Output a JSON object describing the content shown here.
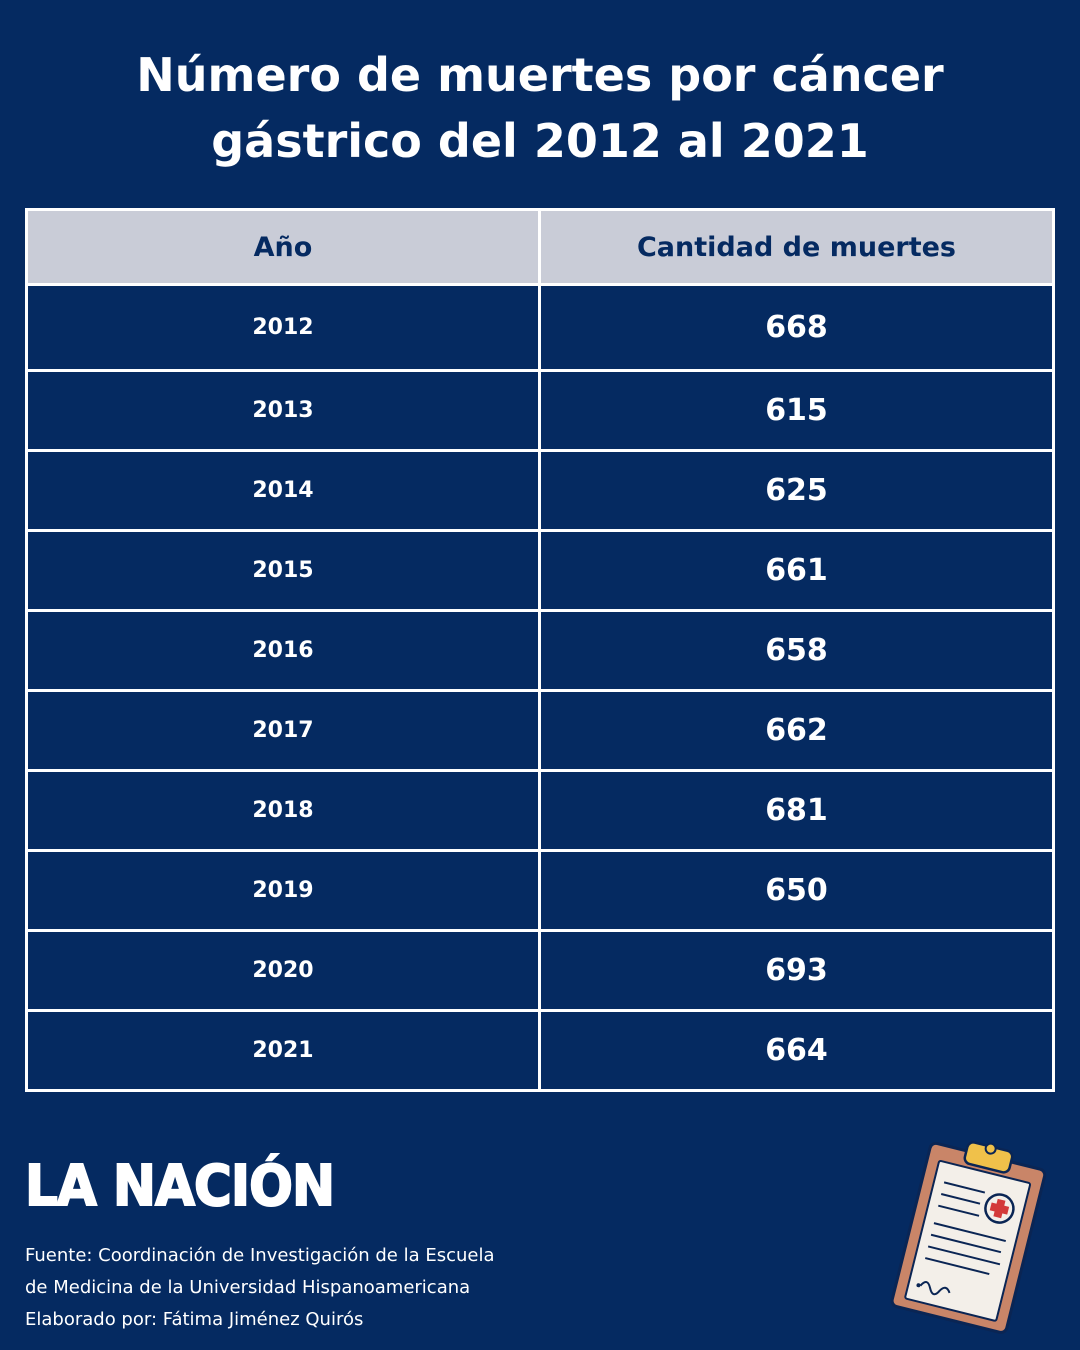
{
  "chart_data": {
    "type": "table",
    "title": "Número de muertes por cáncer gástrico del 2012 al 2021",
    "columns": [
      "Año",
      "Cantidad de muertes"
    ],
    "rows": [
      {
        "year": "2012",
        "value": "668"
      },
      {
        "year": "2013",
        "value": "615"
      },
      {
        "year": "2014",
        "value": "625"
      },
      {
        "year": "2015",
        "value": "661"
      },
      {
        "year": "2016",
        "value": "658"
      },
      {
        "year": "2017",
        "value": "662"
      },
      {
        "year": "2018",
        "value": "681"
      },
      {
        "year": "2019",
        "value": "650"
      },
      {
        "year": "2020",
        "value": "693"
      },
      {
        "year": "2021",
        "value": "664"
      }
    ]
  },
  "header": {
    "title_line1": "Número de muertes por cáncer",
    "title_line2": "gástrico del 2012 al 2021"
  },
  "footer": {
    "logo_text": "LA NACIÓN",
    "source_line1": "Fuente: Coordinación de Investigación de la Escuela",
    "source_line2": "de Medicina de la Universidad Hispanoamericana",
    "author_line": "Elaborado por: Fátima Jiménez Quirós",
    "illustration_icon": "clipboard-medical-icon"
  },
  "colors": {
    "background": "#052a61",
    "header_row": "#c9ccd7",
    "text": "#ffffff",
    "header_text": "#052a61"
  }
}
